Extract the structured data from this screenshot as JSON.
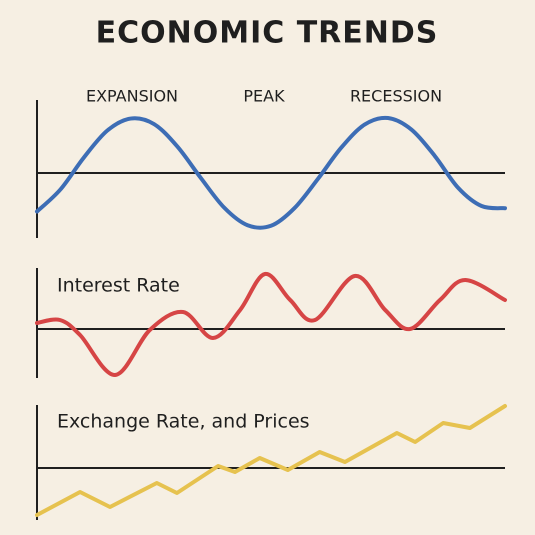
{
  "title": "ECONOMIC TRENDS",
  "chart_data": [
    {
      "type": "line",
      "smooth": true,
      "color": "#3d6db5",
      "annotations": [
        "EXPANSION",
        "PEAK",
        "RECESSION"
      ],
      "xlim": [
        0,
        100
      ],
      "ylim": [
        -1.2,
        1.2
      ],
      "x": [
        0,
        5,
        10,
        15,
        20,
        25,
        30,
        35,
        40,
        45,
        50,
        55,
        60,
        65,
        70,
        75,
        80,
        85,
        90,
        95,
        100
      ],
      "values": [
        -0.7,
        -0.3,
        0.28,
        0.77,
        0.99,
        0.89,
        0.48,
        -0.09,
        -0.63,
        -0.95,
        -0.96,
        -0.64,
        -0.11,
        0.46,
        0.88,
        1.0,
        0.79,
        0.31,
        -0.27,
        -0.6,
        -0.64
      ]
    },
    {
      "type": "line",
      "smooth": true,
      "color": "#d64545",
      "title": "Interest Rate",
      "xlim": [
        0,
        100
      ],
      "ylim": [
        -1,
        1.2
      ],
      "x": [
        0,
        4.9,
        9.2,
        16.7,
        24.1,
        31.2,
        37.6,
        43.4,
        48.7,
        54.1,
        59.4,
        67.9,
        74.4,
        79.7,
        86.1,
        91.5,
        100
      ],
      "values": [
        0.12,
        0.18,
        -0.12,
        -0.92,
        -0.02,
        0.34,
        -0.18,
        0.38,
        1.1,
        0.58,
        0.18,
        1.06,
        0.38,
        0,
        0.58,
        0.98,
        0.58
      ]
    },
    {
      "type": "line",
      "smooth": false,
      "color": "#e6c24f",
      "title": "Exchange Rate, and Prices",
      "xlim": [
        0,
        100
      ],
      "ylim": [
        -1.05,
        1.26
      ],
      "x": [
        0,
        9.2,
        15.6,
        25.6,
        29.9,
        38.7,
        42.3,
        47.6,
        53.6,
        60.4,
        65.8,
        76.9,
        80.8,
        86.8,
        92.5,
        100
      ],
      "values": [
        -0.94,
        -0.48,
        -0.78,
        -0.3,
        -0.5,
        0.04,
        -0.08,
        0.2,
        -0.04,
        0.32,
        0.12,
        0.7,
        0.52,
        0.9,
        0.8,
        1.24
      ]
    }
  ]
}
